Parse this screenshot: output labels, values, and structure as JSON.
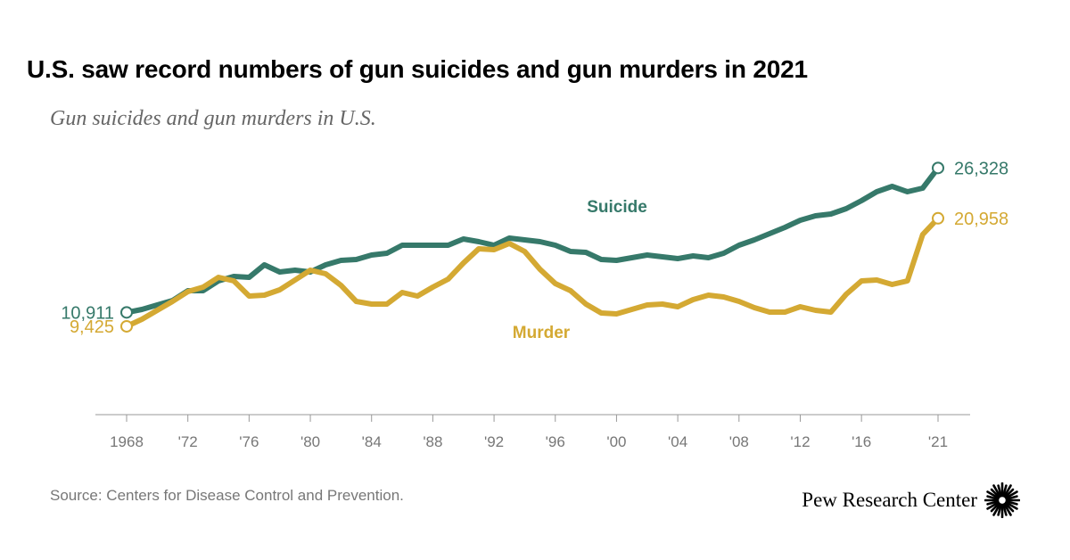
{
  "title": "U.S. saw record numbers of gun suicides and gun murders in 2021",
  "subtitle": "Gun suicides and gun murders in U.S.",
  "source": "Source: Centers for Disease Control and Prevention.",
  "logo": "Pew Research Center",
  "chart_data": {
    "type": "line",
    "title": "U.S. saw record numbers of gun suicides and gun murders in 2021",
    "subtitle": "Gun suicides and gun murders in U.S.",
    "xlabel": "",
    "ylabel": "",
    "x": [
      1968,
      1969,
      1970,
      1971,
      1972,
      1973,
      1974,
      1975,
      1976,
      1977,
      1978,
      1979,
      1980,
      1981,
      1982,
      1983,
      1984,
      1985,
      1986,
      1987,
      1988,
      1989,
      1990,
      1991,
      1992,
      1993,
      1994,
      1995,
      1996,
      1997,
      1998,
      1999,
      2000,
      2001,
      2002,
      2003,
      2004,
      2005,
      2006,
      2007,
      2008,
      2009,
      2010,
      2011,
      2012,
      2013,
      2014,
      2015,
      2016,
      2017,
      2018,
      2019,
      2020,
      2021
    ],
    "xticks": [
      1968,
      1972,
      1976,
      1980,
      1984,
      1988,
      1992,
      1996,
      2000,
      2004,
      2008,
      2012,
      2016,
      2021
    ],
    "xtick_labels": [
      "1968",
      "'72",
      "'76",
      "'80",
      "'84",
      "'88",
      "'92",
      "'96",
      "'00",
      "'04",
      "'08",
      "'12",
      "'16",
      "'21"
    ],
    "ylim": [
      0,
      34000
    ],
    "grid": false,
    "series": [
      {
        "name": "Suicide",
        "color": "#36796a",
        "start_label": "10,911",
        "end_label": "26,328",
        "values": [
          10911,
          11230,
          11706,
          12182,
          13229,
          13229,
          14276,
          14751,
          14656,
          15989,
          15227,
          15418,
          15227,
          15989,
          16464,
          16560,
          17035,
          17226,
          18082,
          18082,
          18082,
          18082,
          18748,
          18463,
          18082,
          18844,
          18653,
          18463,
          18082,
          17416,
          17321,
          16560,
          16464,
          16750,
          17035,
          16845,
          16655,
          16940,
          16750,
          17226,
          18082,
          18653,
          19320,
          19986,
          20747,
          21223,
          21413,
          21984,
          22841,
          23793,
          24364,
          23793,
          24173,
          26328
        ]
      },
      {
        "name": "Murder",
        "color": "#d4a933",
        "start_label": "9,425",
        "end_label": "20,958",
        "values": [
          9425,
          10183,
          11135,
          12087,
          13133,
          13609,
          14656,
          14276,
          12658,
          12753,
          13324,
          14371,
          15418,
          15037,
          13800,
          12087,
          11801,
          11801,
          13038,
          12658,
          13609,
          14466,
          16179,
          17702,
          17606,
          18273,
          17416,
          15513,
          13990,
          13229,
          11801,
          10849,
          10754,
          11230,
          11706,
          11801,
          11516,
          12277,
          12753,
          12562,
          12087,
          11420,
          10945,
          10945,
          11516,
          11135,
          10945,
          12848,
          14276,
          14371,
          13895,
          14276,
          19224,
          20958
        ]
      }
    ]
  }
}
